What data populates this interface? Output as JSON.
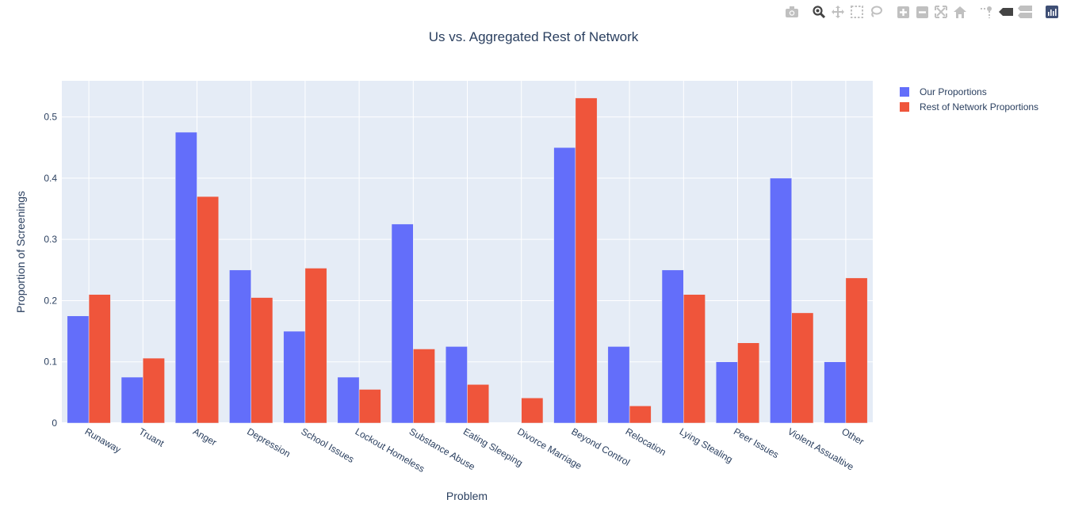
{
  "modebar": {
    "buttons": [
      "camera-icon",
      "zoom-icon",
      "pan-icon",
      "box-select-icon",
      "lasso-select-icon",
      "zoom-in-icon",
      "zoom-out-icon",
      "autoscale-icon",
      "reset-axes-icon",
      "spike-lines-icon",
      "hover-closest-icon",
      "hover-compare-icon",
      "plotly-logo-icon"
    ],
    "icon_color": "#c0c0c0",
    "active_color": "#444444"
  },
  "chart_data": {
    "type": "bar",
    "title": "Us vs. Aggregated Rest of Network",
    "xlabel": "Problem",
    "ylabel": "Proportion of Screenings",
    "categories": [
      "Runaway",
      "Truant",
      "Anger",
      "Depression",
      "School Issues",
      "Lockout Homeless",
      "Substance Abuse",
      "Eating Sleeping",
      "Divorce Marriage",
      "Beyond Control",
      "Relocation",
      "Lying Stealing",
      "Peer Issues",
      "Violent Assualtive",
      "Other"
    ],
    "series": [
      {
        "name": "Our Proportions",
        "color": "#636efa",
        "values": [
          0.175,
          0.075,
          0.475,
          0.25,
          0.15,
          0.075,
          0.325,
          0.125,
          0,
          0.45,
          0.125,
          0.25,
          0.1,
          0.4,
          0.1
        ]
      },
      {
        "name": "Rest of Network Proportions",
        "color": "#ef553b",
        "values": [
          0.21,
          0.106,
          0.37,
          0.205,
          0.253,
          0.055,
          0.121,
          0.063,
          0.041,
          0.531,
          0.028,
          0.21,
          0.131,
          0.18,
          0.237
        ]
      }
    ],
    "yticks": [
      0,
      0.1,
      0.2,
      0.3,
      0.4,
      0.5
    ],
    "ytick_labels": [
      "0",
      "0.1",
      "0.2",
      "0.3",
      "0.4",
      "0.5"
    ],
    "ylim": [
      0,
      0.559
    ],
    "grid": true,
    "legend_position": "top-right",
    "plot_bgcolor": "#e5ecf6"
  }
}
